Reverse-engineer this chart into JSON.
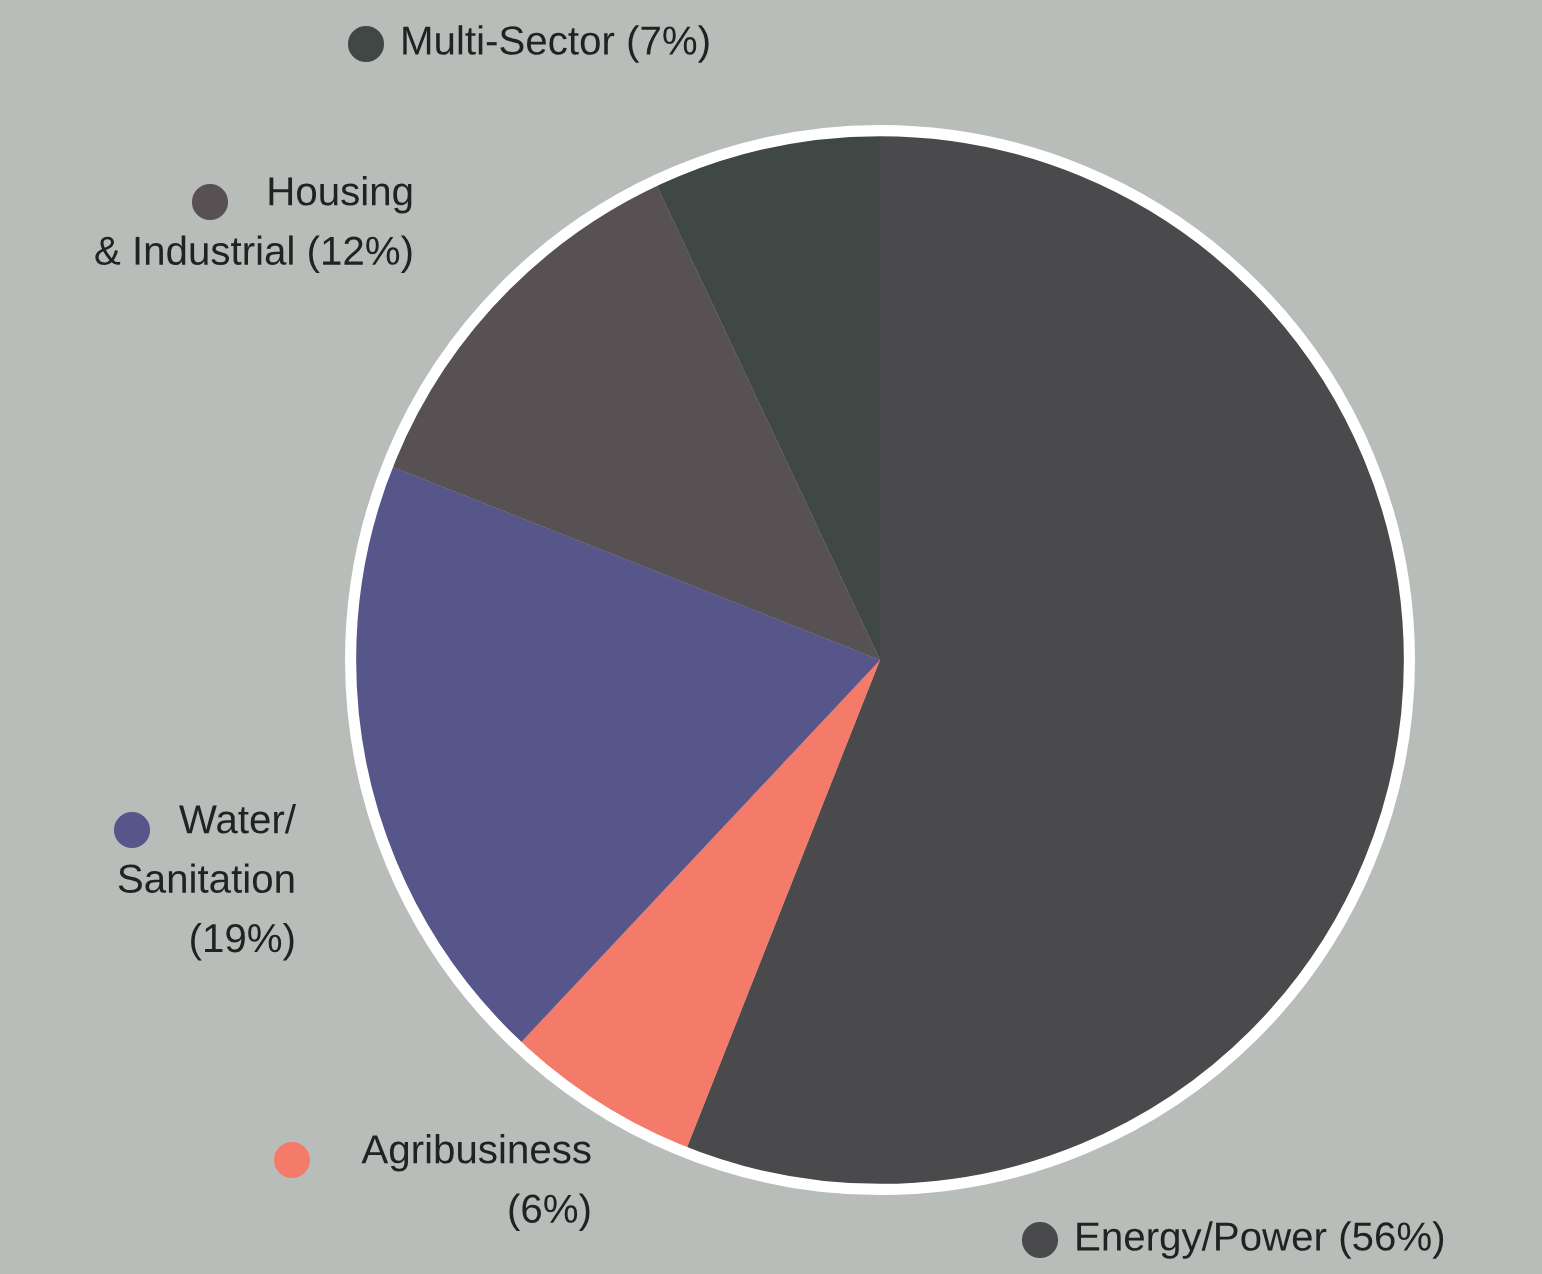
{
  "chart_data": {
    "type": "pie",
    "categories": [
      "Energy/Power",
      "Agribusiness",
      "Water/\nSanitation",
      "Housing\n& Industrial",
      "Multi-Sector"
    ],
    "values": [
      56,
      6,
      19,
      12,
      7
    ],
    "value_labels": [
      "(56%)",
      "(6%)",
      "(19%)",
      "(12%)",
      "(7%)"
    ],
    "colors": [
      "#4a4a4d",
      "#f47a69",
      "#56568a",
      "#575154",
      "#3f4845"
    ],
    "legend": "left"
  }
}
